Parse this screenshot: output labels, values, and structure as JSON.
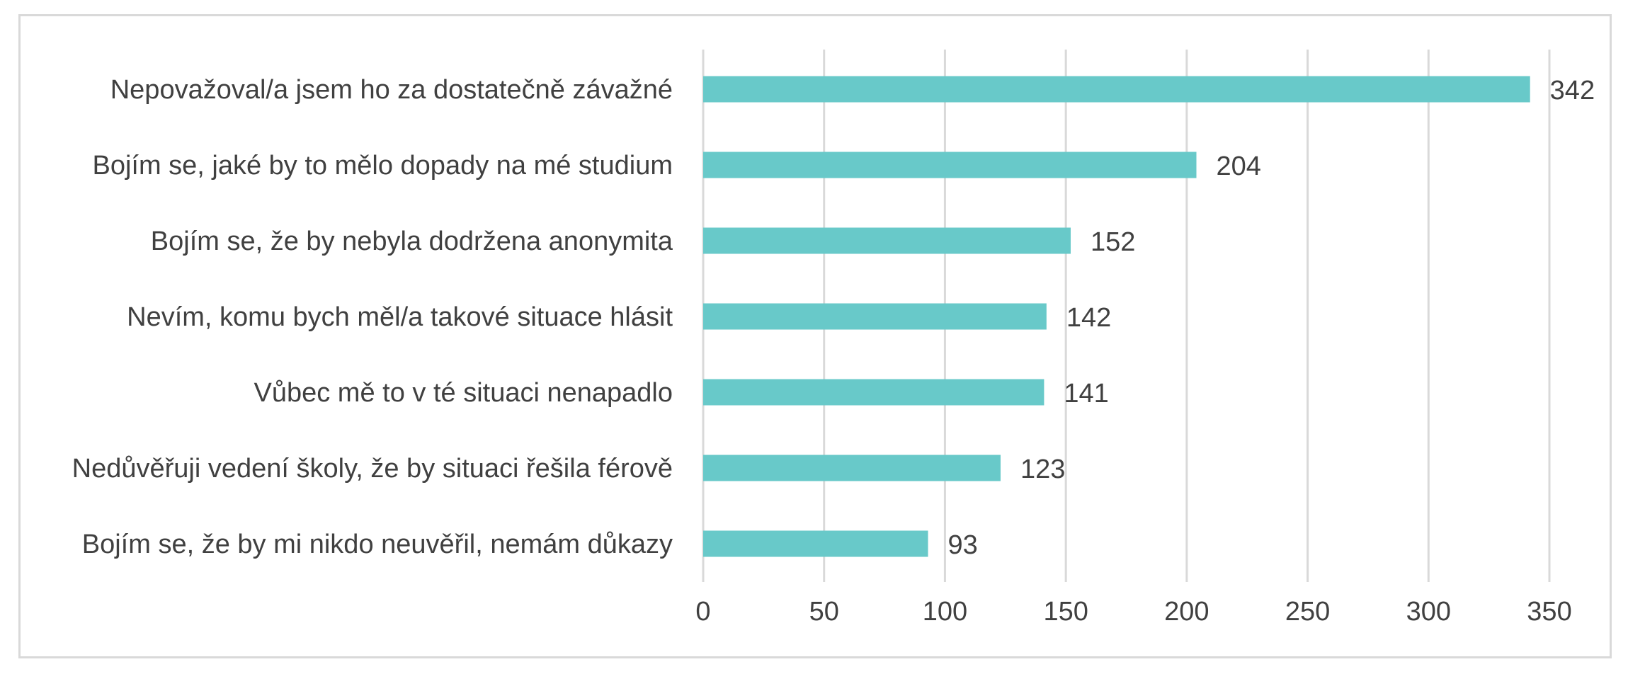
{
  "chart_data": {
    "type": "bar",
    "orientation": "horizontal",
    "title": "",
    "xlabel": "",
    "ylabel": "",
    "categories": [
      "Nepovažoval/a jsem ho za dostatečně závažné",
      "Bojím se, jaké by to mělo dopady na mé studium",
      "Bojím se, že by nebyla dodržena anonymita",
      "Nevím, komu bych měl/a takové situace hlásit",
      "Vůbec mě to v té situaci nenapadlo",
      "Nedůvěřuji vedení školy, že by situaci řešila férově",
      "Bojím se, že by mi nikdo neuvěřil, nemám důkazy"
    ],
    "values": [
      342,
      204,
      152,
      142,
      141,
      123,
      93
    ],
    "data_labels": [
      "342",
      "204",
      "152",
      "142",
      "141",
      "123",
      "93"
    ],
    "xlim": [
      0,
      350
    ],
    "ticks": [
      "0",
      "50",
      "100",
      "150",
      "200",
      "250",
      "300",
      "350"
    ],
    "tick_values": [
      0,
      50,
      100,
      150,
      200,
      250,
      300,
      350
    ],
    "grid": "vertical",
    "legend": "none",
    "bar_color": "#68C9C9",
    "grid_color": "#d9d9d9",
    "text_color": "#404040"
  }
}
